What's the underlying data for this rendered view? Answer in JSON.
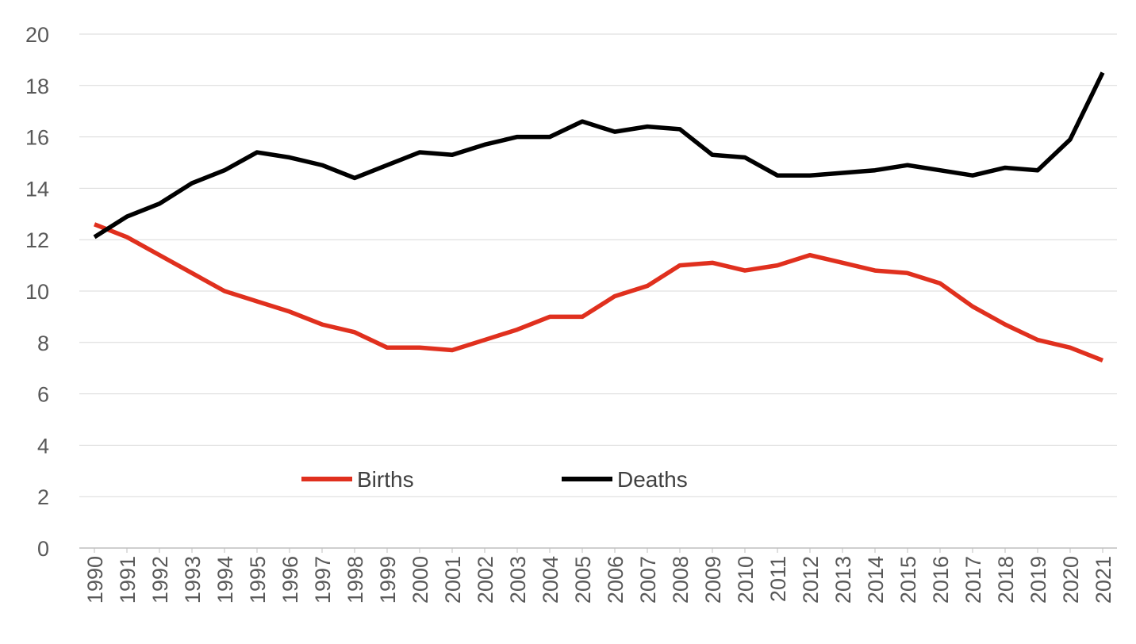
{
  "chart_data": {
    "type": "line",
    "title": "",
    "xlabel": "",
    "ylabel": "",
    "ylim": [
      0,
      20
    ],
    "yticks": [
      0,
      2,
      4,
      6,
      8,
      10,
      12,
      14,
      16,
      18,
      20
    ],
    "grid": true,
    "legend_position": "bottom-left inside",
    "x": [
      "1990",
      "1991",
      "1992",
      "1993",
      "1994",
      "1995",
      "1996",
      "1997",
      "1998",
      "1999",
      "2000",
      "2001",
      "2002",
      "2003",
      "2004",
      "2005",
      "2006",
      "2007",
      "2008",
      "2009",
      "2010",
      "2011",
      "2012",
      "2013",
      "2014",
      "2015",
      "2016",
      "2017",
      "2018",
      "2019",
      "2020",
      "2021"
    ],
    "series": [
      {
        "name": "Births",
        "color": "#e0301e",
        "values": [
          12.6,
          12.1,
          11.4,
          10.7,
          10.0,
          9.6,
          9.2,
          8.7,
          8.4,
          7.8,
          7.8,
          7.7,
          8.1,
          8.5,
          9.0,
          9.0,
          9.8,
          10.2,
          11.0,
          11.1,
          10.8,
          11.0,
          11.4,
          11.1,
          10.8,
          10.7,
          10.3,
          9.4,
          8.7,
          8.1,
          7.8,
          7.3
        ]
      },
      {
        "name": "Deaths",
        "color": "#000000",
        "values": [
          12.1,
          12.9,
          13.4,
          14.2,
          14.7,
          15.4,
          15.2,
          14.9,
          14.4,
          14.9,
          15.4,
          15.3,
          15.7,
          16.0,
          16.0,
          16.6,
          16.2,
          16.4,
          16.3,
          15.3,
          15.2,
          14.5,
          14.5,
          14.6,
          14.7,
          14.9,
          14.7,
          14.5,
          14.8,
          14.7,
          15.9,
          18.5
        ]
      }
    ]
  }
}
